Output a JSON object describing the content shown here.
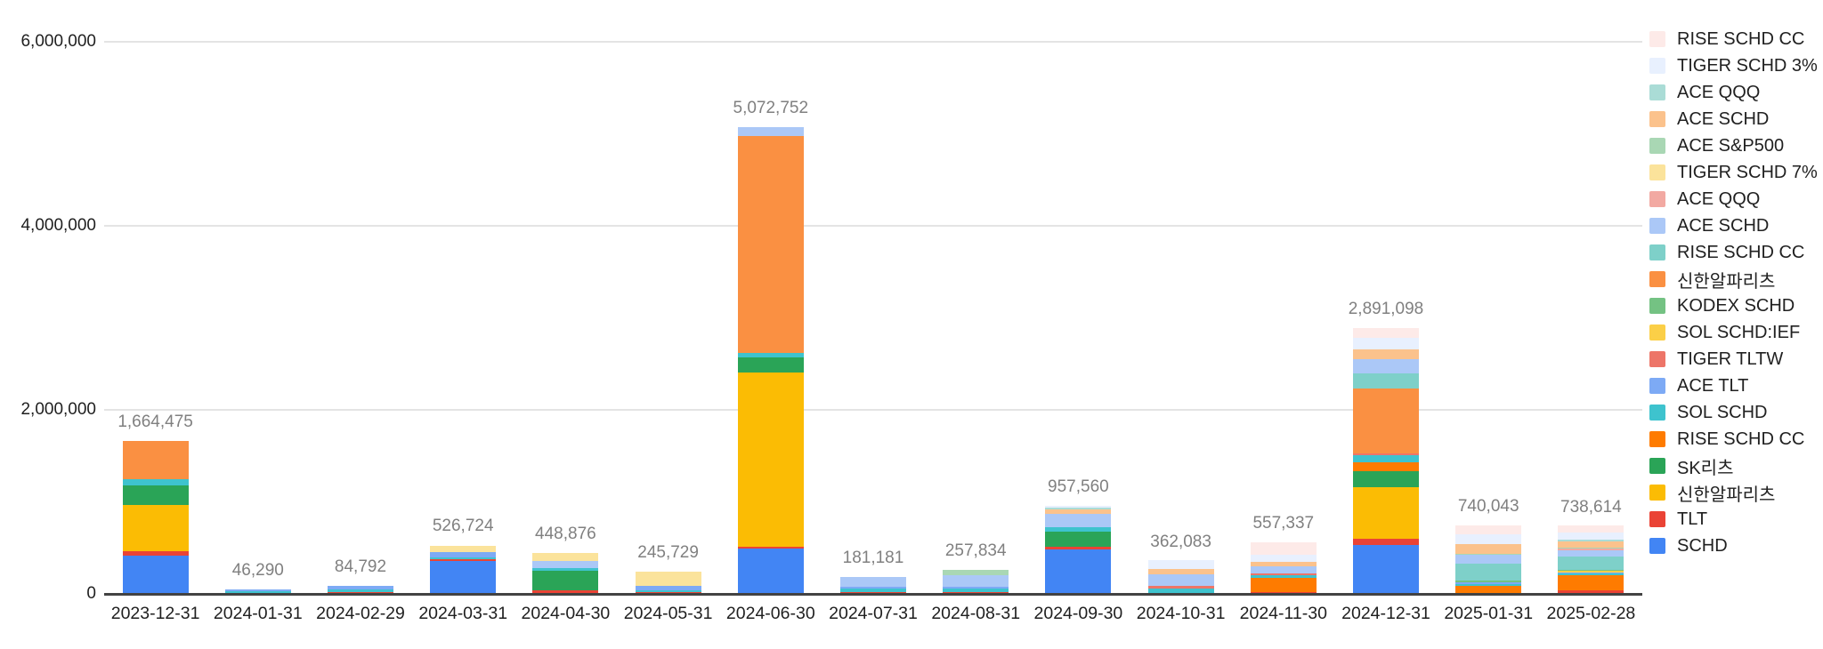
{
  "chart_data": {
    "type": "bar",
    "stacked": true,
    "title": "",
    "xlabel": "",
    "ylabel": "",
    "grid": true,
    "legend_position": "right",
    "ylim": [
      0,
      6000000
    ],
    "yticks": [
      {
        "value": 0,
        "label": "0"
      },
      {
        "value": 2000000,
        "label": "2,000,000"
      },
      {
        "value": 4000000,
        "label": "4,000,000"
      },
      {
        "value": 6000000,
        "label": "6,000,000"
      }
    ],
    "categories": [
      "2023-12-31",
      "2024-01-31",
      "2024-02-29",
      "2024-03-31",
      "2024-04-30",
      "2024-05-31",
      "2024-06-30",
      "2024-07-31",
      "2024-08-31",
      "2024-09-30",
      "2024-10-31",
      "2024-11-30",
      "2024-12-31",
      "2025-01-31",
      "2025-02-28"
    ],
    "totals": [
      1664475,
      46290,
      84792,
      526724,
      448876,
      245729,
      5072752,
      181181,
      257834,
      957560,
      362083,
      557337,
      2891098,
      740043,
      738614
    ],
    "total_labels": [
      "1,664,475",
      "46,290",
      "84,792",
      "526,724",
      "448,876",
      "245,729",
      "5,072,752",
      "181,181",
      "257,834",
      "957,560",
      "362,083",
      "557,337",
      "2,891,098",
      "740,043",
      "738,614"
    ],
    "series": [
      {
        "name": "SCHD",
        "color": "#4285f4",
        "values": [
          420000,
          0,
          0,
          360000,
          0,
          0,
          490000,
          0,
          0,
          485560,
          0,
          0,
          530000,
          0,
          0
        ]
      },
      {
        "name": "TLT",
        "color": "#ea4335",
        "values": [
          40000,
          0,
          15000,
          18000,
          35000,
          15000,
          18000,
          23000,
          20000,
          25000,
          8000,
          15000,
          70000,
          0,
          40000
        ]
      },
      {
        "name": "신한알파리츠",
        "color": "#fbbc04",
        "values": [
          510000,
          0,
          0,
          0,
          0,
          0,
          1900000,
          0,
          0,
          0,
          0,
          0,
          560000,
          0,
          0
        ]
      },
      {
        "name": "SK리츠",
        "color": "#2aa457",
        "values": [
          210000,
          0,
          0,
          0,
          215000,
          0,
          165000,
          0,
          0,
          165000,
          0,
          0,
          175000,
          0,
          0
        ]
      },
      {
        "name": "RISE SCHD CC",
        "color": "#fe7b00",
        "values": [
          0,
          0,
          0,
          0,
          0,
          0,
          0,
          0,
          0,
          0,
          0,
          155000,
          100000,
          90000,
          160000
        ]
      },
      {
        "name": "SOL SCHD",
        "color": "#3ec3ce",
        "values": [
          65000,
          26000,
          30000,
          15000,
          26000,
          20000,
          45000,
          32000,
          35000,
          45000,
          45000,
          30000,
          75000,
          20000,
          20000
        ]
      },
      {
        "name": "ACE TLT",
        "color": "#7daaf5",
        "values": [
          0,
          20290,
          39792,
          60000,
          0,
          55000,
          0,
          23000,
          25000,
          0,
          0,
          0,
          0,
          15000,
          12000
        ]
      },
      {
        "name": "TIGER TLTW",
        "color": "#ed7568",
        "values": [
          0,
          0,
          0,
          0,
          0,
          0,
          0,
          0,
          0,
          0,
          25000,
          18000,
          20000,
          0,
          0
        ]
      },
      {
        "name": "SOL SCHD:IEF",
        "color": "#fbcf47",
        "values": [
          0,
          0,
          0,
          0,
          0,
          0,
          0,
          0,
          0,
          0,
          0,
          0,
          0,
          0,
          12000
        ]
      },
      {
        "name": "KODEX SCHD",
        "color": "#74c283",
        "values": [
          0,
          0,
          0,
          0,
          0,
          0,
          0,
          0,
          0,
          0,
          0,
          0,
          0,
          20000,
          15000
        ]
      },
      {
        "name": "신한알파리츠",
        "color": "#fa9042",
        "values": [
          419475,
          0,
          0,
          0,
          0,
          0,
          2360000,
          0,
          0,
          0,
          0,
          0,
          705000,
          0,
          0
        ]
      },
      {
        "name": "RISE SCHD CC",
        "color": "#7ed0c9",
        "values": [
          0,
          0,
          0,
          0,
          0,
          0,
          0,
          0,
          0,
          0,
          0,
          0,
          160000,
          185000,
          138000
        ]
      },
      {
        "name": "ACE SCHD",
        "color": "#abc8f7",
        "values": [
          0,
          0,
          0,
          0,
          80000,
          0,
          94752,
          103181,
          122834,
          150000,
          125000,
          80000,
          160000,
          95000,
          75000
        ]
      },
      {
        "name": "ACE QQQ",
        "color": "#f2a9a2",
        "values": [
          0,
          0,
          0,
          0,
          0,
          0,
          0,
          0,
          0,
          0,
          0,
          0,
          0,
          0,
          15000
        ]
      },
      {
        "name": "TIGER SCHD 7%",
        "color": "#fbe39b",
        "values": [
          0,
          0,
          0,
          73724,
          92876,
          155729,
          0,
          0,
          0,
          0,
          0,
          0,
          0,
          0,
          0
        ]
      },
      {
        "name": "ACE S&P500",
        "color": "#a9d7b4",
        "values": [
          0,
          0,
          0,
          0,
          0,
          0,
          0,
          0,
          55000,
          0,
          0,
          0,
          0,
          15000,
          10000
        ]
      },
      {
        "name": "ACE SCHD",
        "color": "#fbc28c",
        "values": [
          0,
          0,
          0,
          0,
          0,
          0,
          0,
          0,
          0,
          50000,
          65000,
          55000,
          100000,
          100000,
          65000
        ]
      },
      {
        "name": "ACE QQQ",
        "color": "#aadcd6",
        "values": [
          0,
          0,
          0,
          0,
          0,
          0,
          0,
          0,
          0,
          12000,
          0,
          0,
          0,
          0,
          15000
        ]
      },
      {
        "name": "TIGER SCHD 3%",
        "color": "#e8f0fe",
        "values": [
          0,
          0,
          0,
          0,
          0,
          0,
          0,
          0,
          0,
          25000,
          94083,
          75000,
          130000,
          105000,
          85000
        ]
      },
      {
        "name": "RISE SCHD CC",
        "color": "#fdeae8",
        "values": [
          0,
          0,
          0,
          0,
          0,
          0,
          0,
          0,
          0,
          0,
          0,
          129337,
          106098,
          95043,
          76614
        ]
      }
    ],
    "legend_note": "legend lists series top-to-bottom in reverse stacking order",
    "colors": {
      "gridline": "#e4e4e4",
      "axis_line": "#424242",
      "axis_text": "#1f1f1f",
      "total_label_text": "#808080",
      "legend_text": "#212121",
      "background": "#ffffff"
    }
  }
}
